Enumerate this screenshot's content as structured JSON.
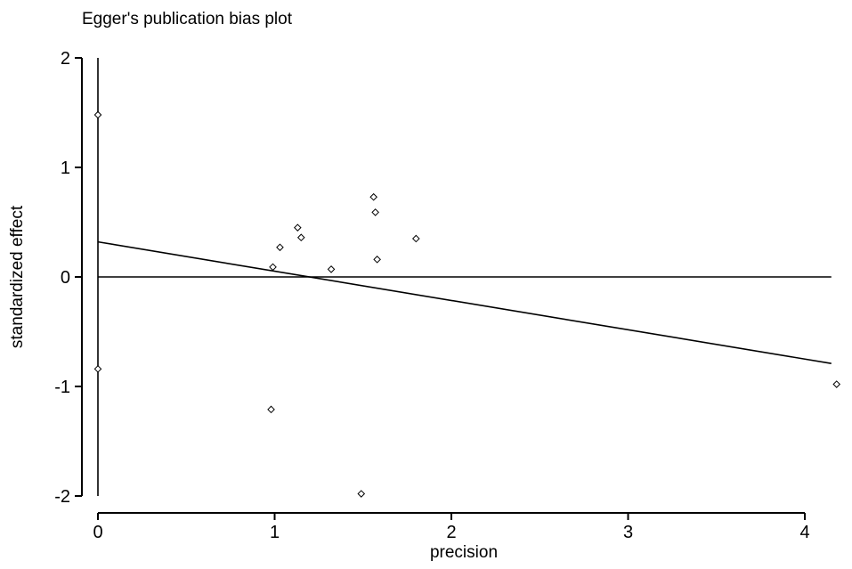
{
  "chart_data": {
    "type": "scatter",
    "title": "Egger's publication bias plot",
    "xlabel": "precision",
    "ylabel": "standardized effect",
    "xlim": [
      0,
      4.15
    ],
    "ylim": [
      -2,
      2
    ],
    "x_ticks": [
      0,
      1,
      2,
      3,
      4
    ],
    "y_ticks": [
      2,
      1,
      0,
      -1,
      -2
    ],
    "grid": false,
    "legend": "none",
    "colors": {
      "line": "#000000",
      "marker": "#000000"
    },
    "points": [
      {
        "x": 0.0,
        "y": 1.48
      },
      {
        "x": 0.0,
        "y": -0.84
      },
      {
        "x": 0.99,
        "y": 0.09
      },
      {
        "x": 0.98,
        "y": -1.21
      },
      {
        "x": 1.03,
        "y": 0.27
      },
      {
        "x": 1.13,
        "y": 0.45
      },
      {
        "x": 1.15,
        "y": 0.36
      },
      {
        "x": 1.32,
        "y": 0.07
      },
      {
        "x": 1.49,
        "y": -1.98
      },
      {
        "x": 1.56,
        "y": 0.73
      },
      {
        "x": 1.57,
        "y": 0.59
      },
      {
        "x": 1.58,
        "y": 0.16
      },
      {
        "x": 1.8,
        "y": 0.35
      },
      {
        "x": 4.18,
        "y": -0.98
      }
    ],
    "regression_line": {
      "x": [
        0,
        4.15
      ],
      "y": [
        0.32,
        -0.79
      ]
    },
    "reference_line_y": 0,
    "vertical_line": {
      "x": 0,
      "y": [
        -2,
        2
      ]
    }
  }
}
